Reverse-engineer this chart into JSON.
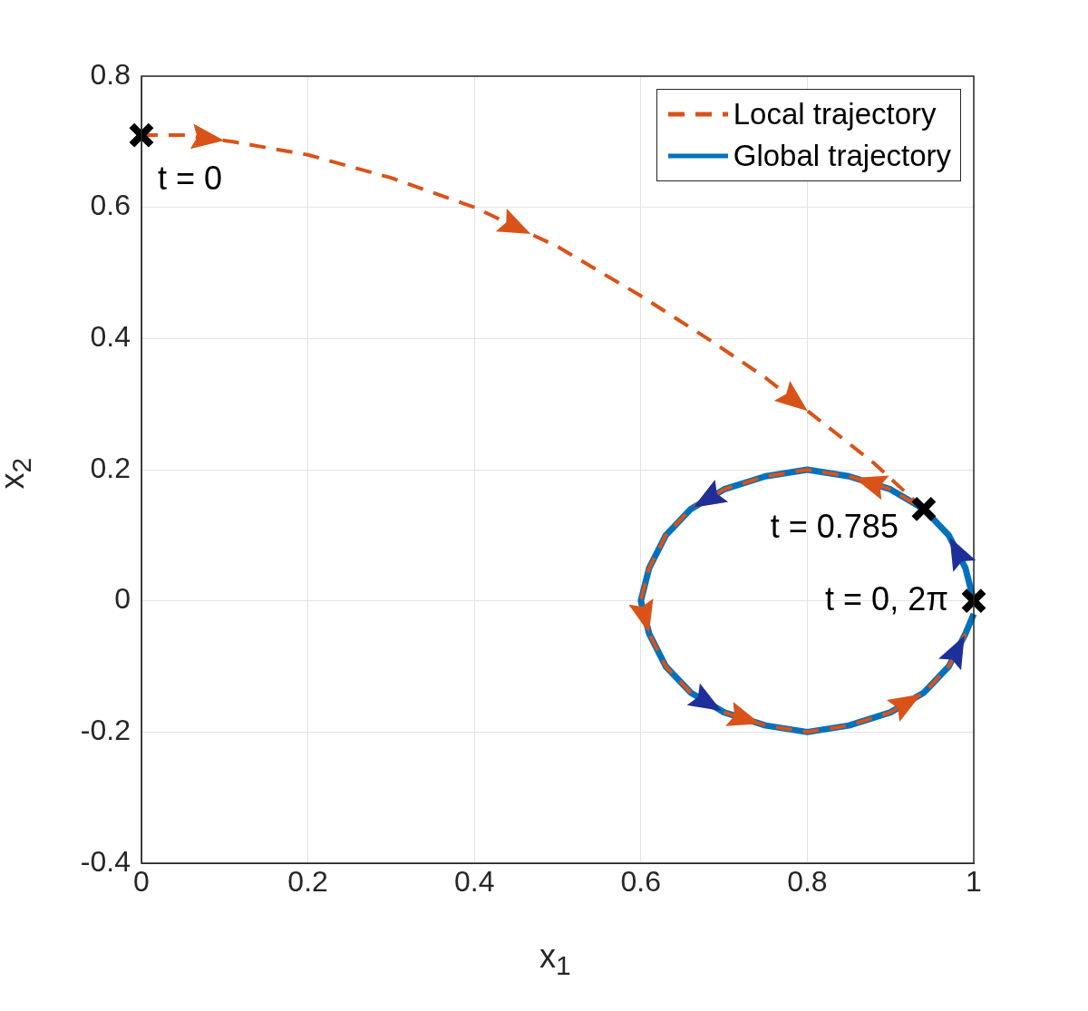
{
  "chart_data": {
    "type": "line",
    "xlabel": "x$_{1}$",
    "ylabel": "x$_{2}$",
    "xlim": [
      0,
      1
    ],
    "xticks": [
      0,
      0.2,
      0.4,
      0.6,
      0.8,
      1
    ],
    "ylim": [
      -0.4,
      0.8
    ],
    "yticks": [
      -0.4,
      -0.2,
      0,
      0.2,
      0.4,
      0.6,
      0.8
    ],
    "grid": true,
    "legend": "top right",
    "series": [
      {
        "name": "Local trajectory",
        "color": "#d95319",
        "line_style": "dashed",
        "marker": "none",
        "x": [
          0,
          0.05,
          0.11,
          0.2,
          0.3,
          0.4,
          0.5,
          0.6,
          0.68,
          0.75,
          0.82,
          0.88,
          0.94,
          0.9,
          0.85,
          0.8,
          0.75,
          0.7,
          0.66,
          0.63,
          0.61,
          0.6,
          0.61,
          0.63,
          0.66,
          0.7,
          0.75,
          0.8,
          0.85,
          0.9,
          0.94,
          0.97,
          0.99
        ],
        "values": [
          0.71,
          0.71,
          0.7,
          0.68,
          0.645,
          0.6,
          0.54,
          0.465,
          0.4,
          0.34,
          0.27,
          0.21,
          0.14,
          0.17,
          0.19,
          0.2,
          0.19,
          0.17,
          0.14,
          0.1,
          0.05,
          0,
          -0.05,
          -0.1,
          -0.14,
          -0.17,
          -0.19,
          -0.2,
          -0.19,
          -0.17,
          -0.14,
          -0.1,
          -0.05
        ]
      },
      {
        "name": "Global trajectory",
        "color": "#0072bd",
        "line_style": "solid",
        "marker": "none",
        "x": [
          1.0,
          0.99,
          0.97,
          0.94,
          0.9,
          0.85,
          0.8,
          0.75,
          0.7,
          0.66,
          0.63,
          0.61,
          0.6,
          0.61,
          0.63,
          0.66,
          0.7,
          0.75,
          0.8,
          0.85,
          0.9,
          0.94,
          0.97,
          0.99,
          1.0
        ],
        "values": [
          0,
          0.05,
          0.1,
          0.14,
          0.17,
          0.19,
          0.2,
          0.19,
          0.17,
          0.14,
          0.1,
          0.05,
          0,
          -0.05,
          -0.1,
          -0.14,
          -0.17,
          -0.19,
          -0.2,
          -0.19,
          -0.17,
          -0.14,
          -0.1,
          -0.05,
          -0.02
        ]
      },
      {
        "type": "scatter",
        "color": "#000000",
        "marker": "cross",
        "x": [
          0,
          0.94,
          1
        ],
        "values": [
          0.71,
          0.14,
          0
        ]
      }
    ],
    "annotations": [
      {
        "text": "t = 0",
        "x": 0,
        "y": 0.71
      },
      {
        "text": "t = 0.785",
        "x": 0.94,
        "y": 0.14
      },
      {
        "text": "t = 0, 2π",
        "x": 1,
        "y": 0
      }
    ]
  }
}
